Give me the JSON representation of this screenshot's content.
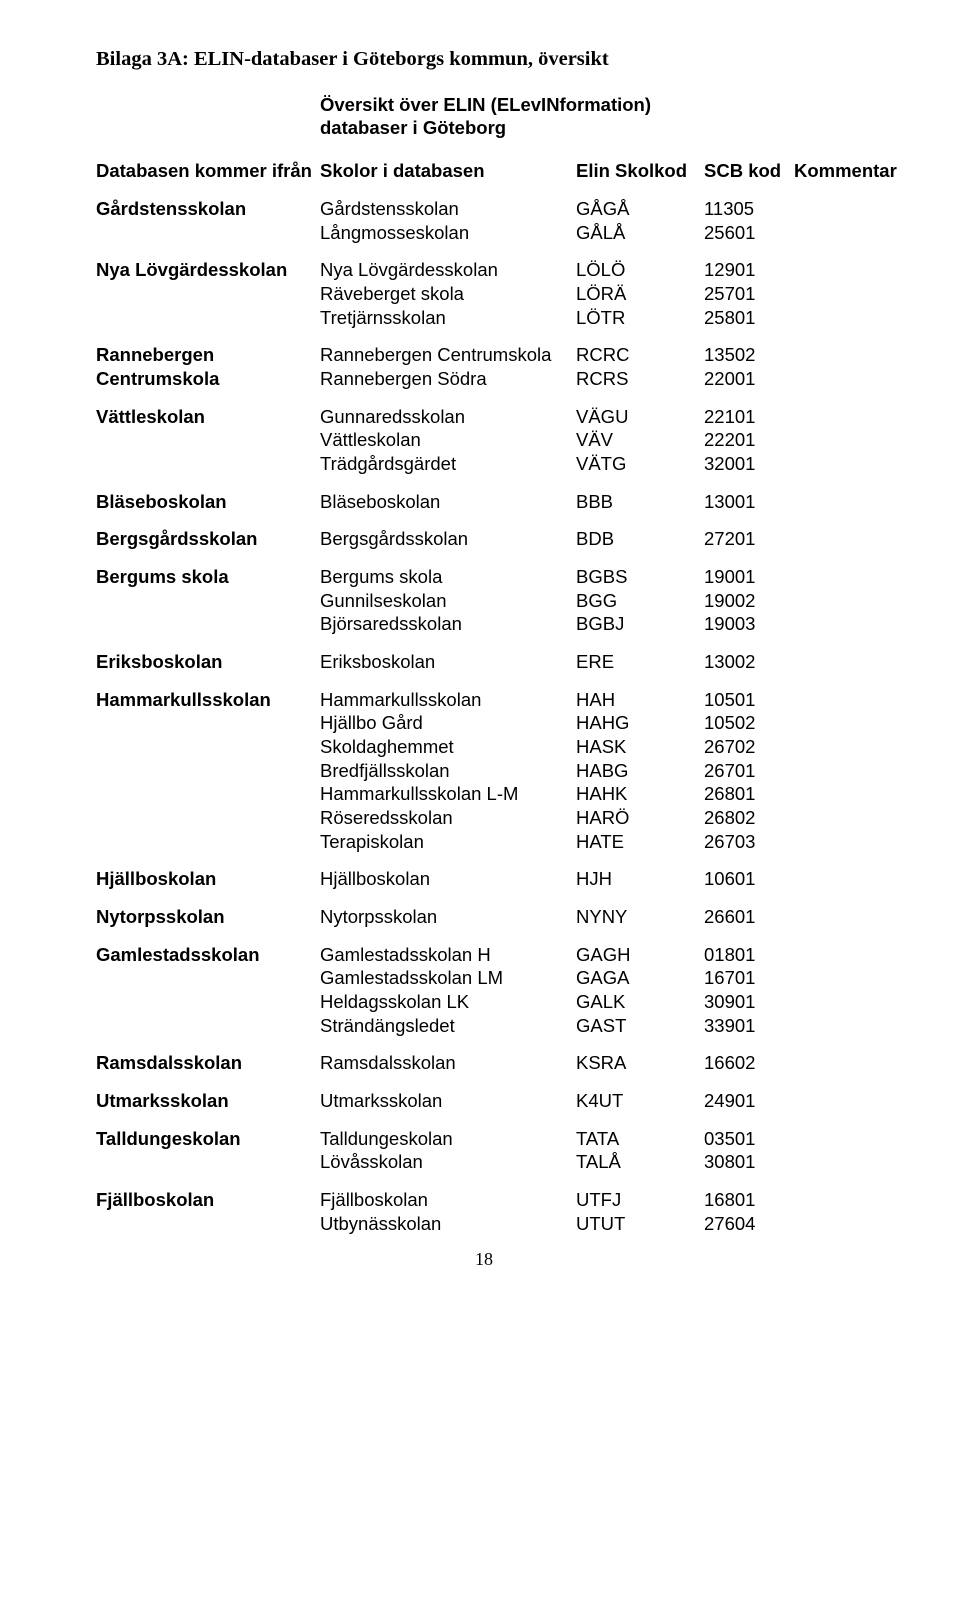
{
  "title": "Bilaga 3A: ELIN-databaser i Göteborgs kommun, översikt",
  "subtitle_line1": "Översikt över ELIN (ELevINformation)",
  "subtitle_line2": "databaser i Göteborg",
  "headers": {
    "db": "Databasen kommer ifrån",
    "school": "Skolor i databasen",
    "code": "Elin Skolkod",
    "scb": "SCB kod",
    "comment": "Kommentar"
  },
  "groups": [
    {
      "db": "Gårdstensskolan",
      "schools": [
        {
          "name": "Gårdstensskolan",
          "code": "GÅGÅ",
          "scb": "11305"
        },
        {
          "name": "Långmosseskolan",
          "code": "GÅLÅ",
          "scb": "25601"
        }
      ]
    },
    {
      "db": "Nya Lövgärdesskolan",
      "schools": [
        {
          "name": "Nya Lövgärdesskolan",
          "code": "LÖLÖ",
          "scb": "12901"
        },
        {
          "name": "Räveberget skola",
          "code": "LÖRÄ",
          "scb": "25701"
        },
        {
          "name": "Tretjärnsskolan",
          "code": "LÖTR",
          "scb": "25801"
        }
      ]
    },
    {
      "db": "Rannebergen Centrumskola",
      "schools": [
        {
          "name": "Rannebergen Centrumskola",
          "code": "RCRC",
          "scb": "13502"
        },
        {
          "name": "Rannebergen Södra",
          "code": "RCRS",
          "scb": "22001"
        }
      ]
    },
    {
      "db": "Vättleskolan",
      "schools": [
        {
          "name": "Gunnaredsskolan",
          "code": "VÄGU",
          "scb": "22101"
        },
        {
          "name": "Vättleskolan",
          "code": "VÄV",
          "scb": "22201"
        },
        {
          "name": "Trädgårdsgärdet",
          "code": "VÄTG",
          "scb": "32001"
        }
      ]
    },
    {
      "db": "Bläseboskolan",
      "schools": [
        {
          "name": "Bläseboskolan",
          "code": "BBB",
          "scb": "13001"
        }
      ]
    },
    {
      "db": "Bergsgårdsskolan",
      "schools": [
        {
          "name": "Bergsgårdsskolan",
          "code": "BDB",
          "scb": "27201"
        }
      ]
    },
    {
      "db": "Bergums skola",
      "schools": [
        {
          "name": "Bergums skola",
          "code": "BGBS",
          "scb": "19001"
        },
        {
          "name": "Gunnilseskolan",
          "code": "BGG",
          "scb": "19002"
        },
        {
          "name": "Björsaredsskolan",
          "code": "BGBJ",
          "scb": "19003"
        }
      ]
    },
    {
      "db": "Eriksboskolan",
      "schools": [
        {
          "name": "Eriksboskolan",
          "code": "ERE",
          "scb": "13002"
        }
      ]
    },
    {
      "db": "Hammarkullsskolan",
      "schools": [
        {
          "name": "Hammarkullsskolan",
          "code": "HAH",
          "scb": "10501"
        },
        {
          "name": "Hjällbo Gård",
          "code": "HAHG",
          "scb": "10502"
        },
        {
          "name": "Skoldaghemmet",
          "code": "HASK",
          "scb": "26702"
        },
        {
          "name": "Bredfjällsskolan",
          "code": "HABG",
          "scb": "26701"
        },
        {
          "name": "Hammarkullsskolan L-M",
          "code": "HAHK",
          "scb": "26801"
        },
        {
          "name": "Röseredsskolan",
          "code": "HARÖ",
          "scb": "26802"
        },
        {
          "name": "Terapiskolan",
          "code": "HATE",
          "scb": "26703"
        }
      ]
    },
    {
      "db": "Hjällboskolan",
      "schools": [
        {
          "name": "Hjällboskolan",
          "code": "HJH",
          "scb": "10601"
        }
      ]
    },
    {
      "db": "Nytorpsskolan",
      "schools": [
        {
          "name": "Nytorpsskolan",
          "code": "NYNY",
          "scb": "26601"
        }
      ]
    },
    {
      "db": "Gamlestadsskolan",
      "schools": [
        {
          "name": "Gamlestadsskolan H",
          "code": "GAGH",
          "scb": "01801"
        },
        {
          "name": "Gamlestadsskolan LM",
          "code": "GAGA",
          "scb": "16701"
        },
        {
          "name": "Heldagsskolan LK",
          "code": "GALK",
          "scb": "30901"
        },
        {
          "name": "Strändängsledet",
          "code": "GAST",
          "scb": "33901"
        }
      ]
    },
    {
      "db": "Ramsdalsskolan",
      "schools": [
        {
          "name": "Ramsdalsskolan",
          "code": "KSRA",
          "scb": "16602"
        }
      ]
    },
    {
      "db": "Utmarksskolan",
      "schools": [
        {
          "name": "Utmarksskolan",
          "code": "K4UT",
          "scb": "24901"
        }
      ]
    },
    {
      "db": "Talldungeskolan",
      "schools": [
        {
          "name": "Talldungeskolan",
          "code": "TATA",
          "scb": "03501"
        },
        {
          "name": "Lövåsskolan",
          "code": "TALÅ",
          "scb": "30801"
        }
      ]
    },
    {
      "db": "Fjällboskolan",
      "schools": [
        {
          "name": "Fjällboskolan",
          "code": "UTFJ",
          "scb": "16801"
        },
        {
          "name": "Utbynässkolan",
          "code": "UTUT",
          "scb": "27604"
        }
      ]
    }
  ],
  "page_number": "18"
}
